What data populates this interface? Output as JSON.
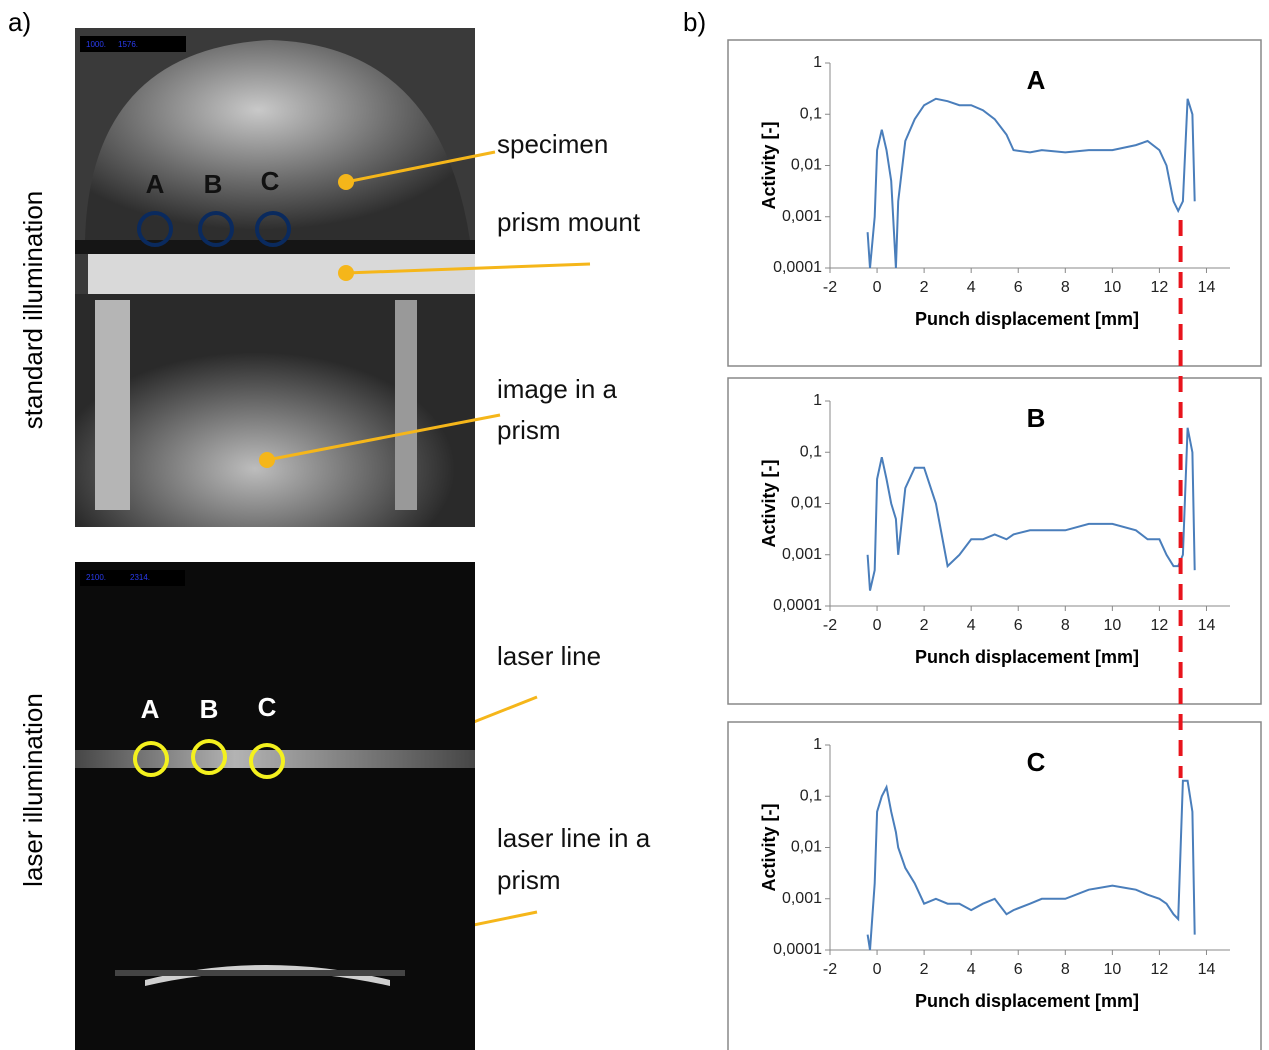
{
  "panel_labels": [
    "a)",
    "b)"
  ],
  "photos": [
    {
      "side_label": "standard illumination",
      "overlay_text": [
        "1000.",
        "1576."
      ],
      "markers": [
        "A",
        "B",
        "C"
      ],
      "annotations": [
        {
          "lines": [
            "specimen"
          ]
        },
        {
          "lines": [
            "prism mount"
          ]
        },
        {
          "lines": [
            "image in a",
            "prism"
          ]
        }
      ]
    },
    {
      "side_label": "laser illumination",
      "overlay_text": [
        "2100.",
        "2314."
      ],
      "markers": [
        "A",
        "B",
        "C"
      ],
      "annotations": [
        {
          "lines": [
            "laser line"
          ]
        },
        {
          "lines": [
            "laser line in a",
            "prism"
          ]
        }
      ]
    }
  ],
  "reference_line": {
    "x": 12.9,
    "color": "#e8141c"
  },
  "chart_data": [
    {
      "type": "line",
      "title": "A",
      "xlabel": "Punch displacement [mm]",
      "ylabel": "Activity [-]",
      "log_y": true,
      "xlim": [
        -2,
        15
      ],
      "ylim": [
        0.0001,
        1
      ],
      "xticks": [
        -2,
        0,
        2,
        4,
        6,
        8,
        10,
        12,
        14
      ],
      "yticks": [
        {
          "value": 0.0001,
          "label": "0,0001"
        },
        {
          "value": 0.001,
          "label": "0,001"
        },
        {
          "value": 0.01,
          "label": "0,01"
        },
        {
          "value": 0.1,
          "label": "0,1"
        },
        1
      ],
      "x": [
        -0.4,
        -0.3,
        -0.1,
        0,
        0.2,
        0.4,
        0.6,
        0.8,
        0.9,
        1.2,
        1.6,
        2,
        2.5,
        3,
        3.5,
        4,
        4.5,
        5,
        5.5,
        5.8,
        6.5,
        7,
        8,
        9,
        10,
        11,
        11.5,
        12,
        12.3,
        12.6,
        12.8,
        13,
        13.2,
        13.4,
        13.5
      ],
      "series": [
        {
          "color": "#4a7ebb",
          "values": [
            0.0005,
            0.0001,
            0.001,
            0.02,
            0.05,
            0.02,
            0.005,
            0.0001,
            0.002,
            0.03,
            0.08,
            0.15,
            0.2,
            0.18,
            0.15,
            0.15,
            0.12,
            0.08,
            0.04,
            0.02,
            0.018,
            0.02,
            0.018,
            0.02,
            0.02,
            0.025,
            0.03,
            0.02,
            0.01,
            0.002,
            0.0013,
            0.002,
            0.2,
            0.1,
            0.002
          ]
        }
      ]
    },
    {
      "type": "line",
      "title": "B",
      "xlabel": "Punch displacement [mm]",
      "ylabel": "Activity [-]",
      "log_y": true,
      "xlim": [
        -2,
        15
      ],
      "ylim": [
        0.0001,
        1
      ],
      "xticks": [
        -2,
        0,
        2,
        4,
        6,
        8,
        10,
        12,
        14
      ],
      "yticks": [
        {
          "value": 0.0001,
          "label": "0,0001"
        },
        {
          "value": 0.001,
          "label": "0,001"
        },
        {
          "value": 0.01,
          "label": "0,01"
        },
        {
          "value": 0.1,
          "label": "0,1"
        },
        1
      ],
      "x": [
        -0.4,
        -0.3,
        -0.1,
        0,
        0.2,
        0.4,
        0.6,
        0.8,
        0.9,
        1.2,
        1.6,
        2,
        2.5,
        3,
        3.5,
        4,
        4.5,
        5,
        5.5,
        5.8,
        6.5,
        7,
        8,
        9,
        10,
        11,
        11.5,
        12,
        12.3,
        12.6,
        12.8,
        13,
        13.2,
        13.4,
        13.5
      ],
      "series": [
        {
          "color": "#4a7ebb",
          "values": [
            0.001,
            0.0002,
            0.0005,
            0.03,
            0.08,
            0.03,
            0.01,
            0.005,
            0.001,
            0.02,
            0.05,
            0.05,
            0.01,
            0.0006,
            0.001,
            0.002,
            0.002,
            0.0025,
            0.002,
            0.0025,
            0.003,
            0.003,
            0.003,
            0.004,
            0.004,
            0.003,
            0.002,
            0.002,
            0.001,
            0.0006,
            0.0006,
            0.001,
            0.3,
            0.1,
            0.0005
          ]
        }
      ]
    },
    {
      "type": "line",
      "title": "C",
      "xlabel": "Punch displacement [mm]",
      "ylabel": "Activity [-]",
      "log_y": true,
      "xlim": [
        -2,
        15
      ],
      "ylim": [
        0.0001,
        1
      ],
      "xticks": [
        -2,
        0,
        2,
        4,
        6,
        8,
        10,
        12,
        14
      ],
      "yticks": [
        {
          "value": 0.0001,
          "label": "0,0001"
        },
        {
          "value": 0.001,
          "label": "0,001"
        },
        {
          "value": 0.01,
          "label": "0,01"
        },
        {
          "value": 0.1,
          "label": "0,1"
        },
        1
      ],
      "x": [
        -0.4,
        -0.3,
        -0.1,
        0,
        0.2,
        0.4,
        0.6,
        0.8,
        0.9,
        1.2,
        1.6,
        2,
        2.5,
        3,
        3.5,
        4,
        4.5,
        5,
        5.5,
        5.8,
        6.5,
        7,
        8,
        9,
        10,
        11,
        11.5,
        12,
        12.3,
        12.6,
        12.8,
        13,
        13.2,
        13.4,
        13.5
      ],
      "series": [
        {
          "color": "#4a7ebb",
          "values": [
            0.0002,
            0.0001,
            0.002,
            0.05,
            0.1,
            0.15,
            0.05,
            0.02,
            0.01,
            0.004,
            0.002,
            0.0008,
            0.001,
            0.0008,
            0.0008,
            0.0006,
            0.0008,
            0.001,
            0.0005,
            0.0006,
            0.0008,
            0.001,
            0.001,
            0.0015,
            0.0018,
            0.0015,
            0.0012,
            0.001,
            0.0008,
            0.0005,
            0.0004,
            0.2,
            0.2,
            0.05,
            0.0002
          ]
        }
      ]
    }
  ]
}
